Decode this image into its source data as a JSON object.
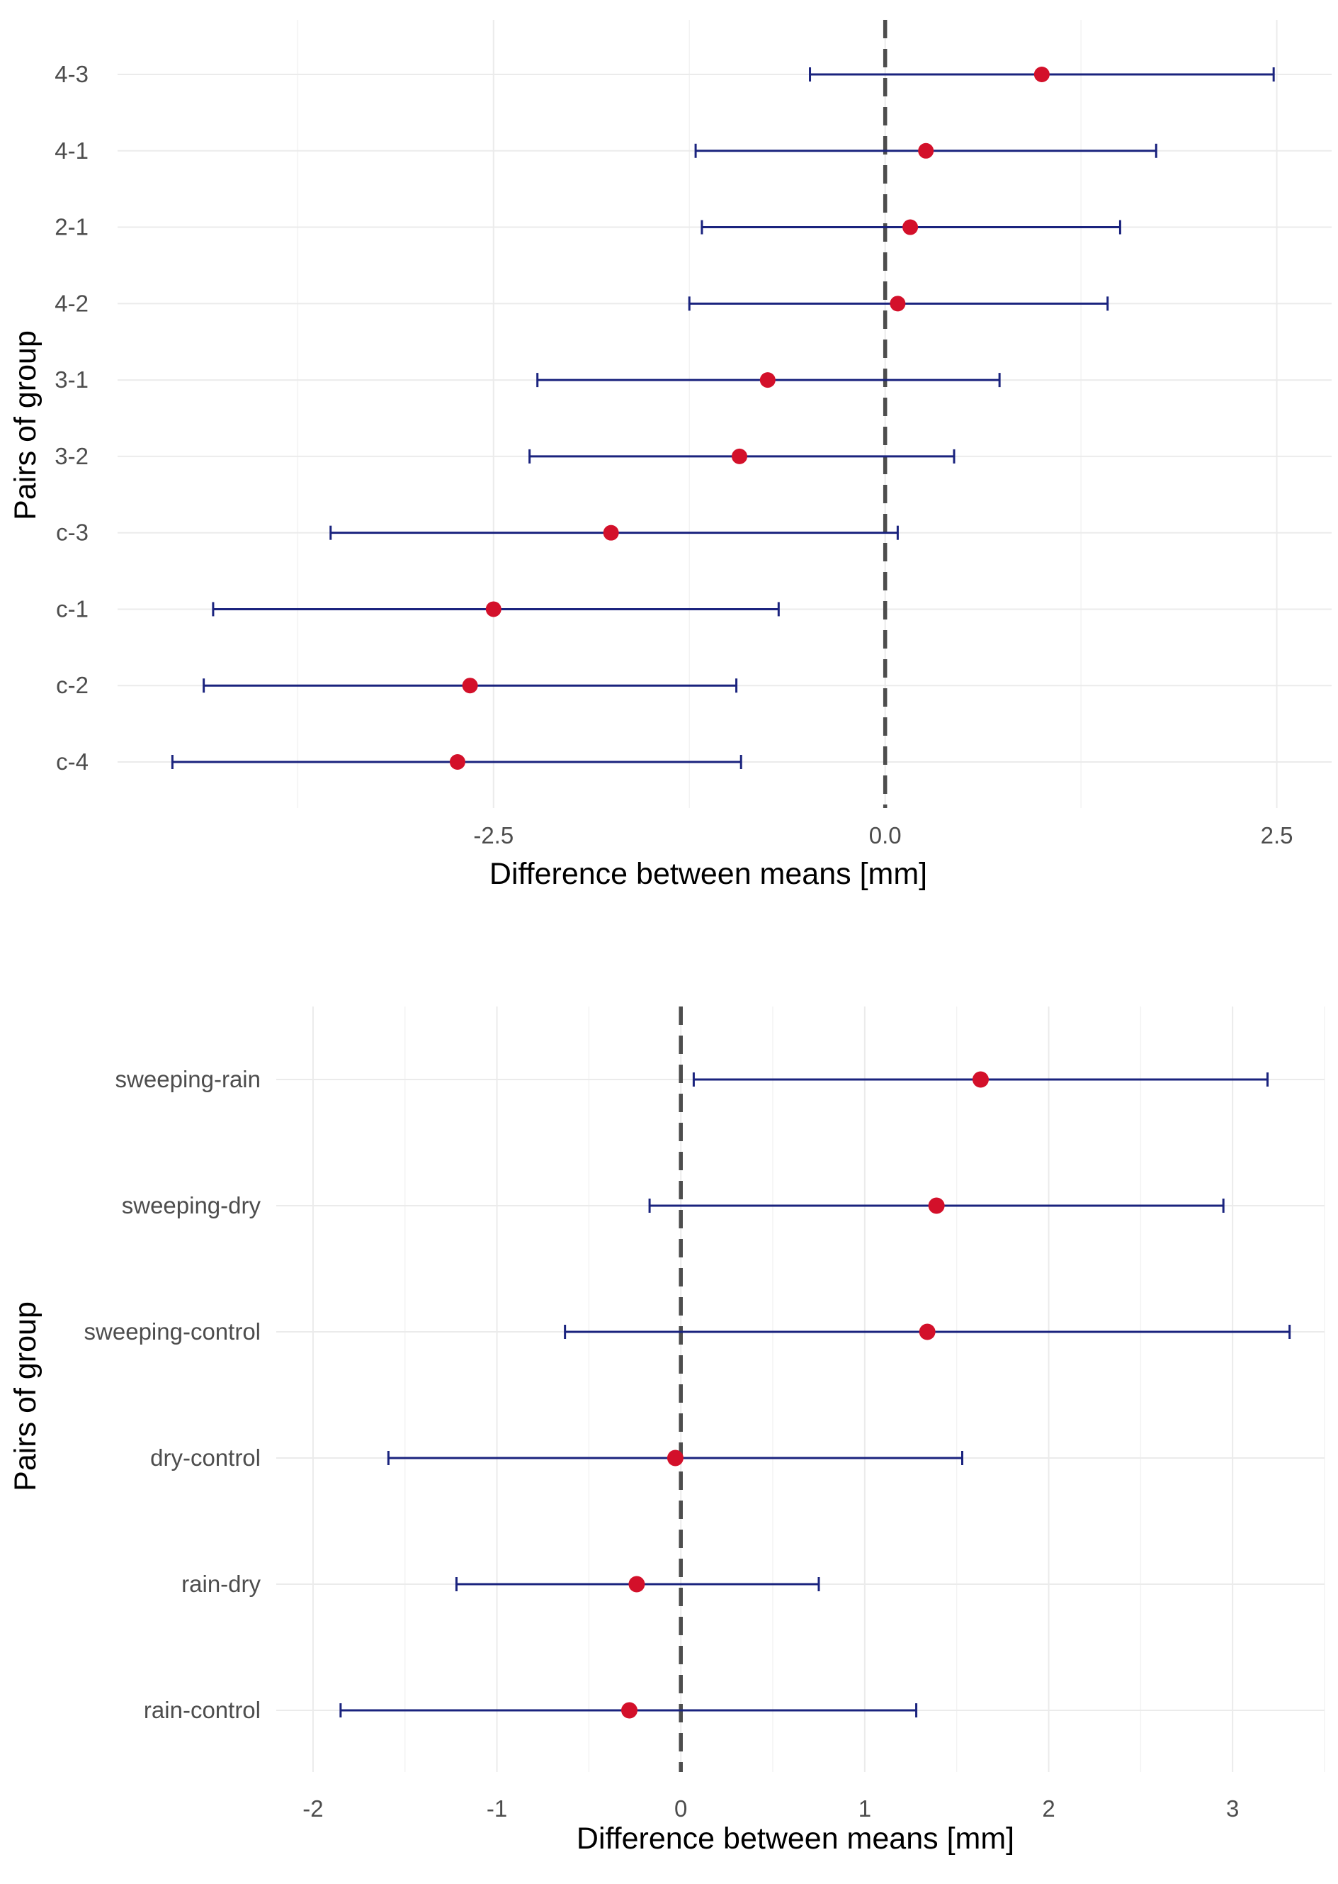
{
  "colors": {
    "errorbar": "#1a237e",
    "point": "#d3102a",
    "zero_line": "#4d4d4d",
    "grid": "#ebebeb",
    "tick_text": "#4d4d4d"
  },
  "chart_data": [
    {
      "type": "errorbar",
      "xlabel": "Difference between means [mm]",
      "ylabel": "Pairs of group",
      "xlim": [
        -4.9,
        2.85
      ],
      "xticks": [
        -2.5,
        0,
        2.5
      ],
      "xtick_labels": [
        "-2.5",
        "0.0",
        "2.5"
      ],
      "reference_line": 0,
      "series": [
        {
          "label": "4-3",
          "estimate": 1.0,
          "lower": -0.48,
          "upper": 2.48
        },
        {
          "label": "4-1",
          "estimate": 0.26,
          "lower": -1.21,
          "upper": 1.73
        },
        {
          "label": "2-1",
          "estimate": 0.16,
          "lower": -1.17,
          "upper": 1.5
        },
        {
          "label": "4-2",
          "estimate": 0.08,
          "lower": -1.25,
          "upper": 1.42
        },
        {
          "label": "3-1",
          "estimate": -0.75,
          "lower": -2.22,
          "upper": 0.73
        },
        {
          "label": "3-2",
          "estimate": -0.93,
          "lower": -2.27,
          "upper": 0.44
        },
        {
          "label": "c-3",
          "estimate": -1.75,
          "lower": -3.54,
          "upper": 0.08
        },
        {
          "label": "c-1",
          "estimate": -2.5,
          "lower": -4.29,
          "upper": -0.68
        },
        {
          "label": "c-2",
          "estimate": -2.65,
          "lower": -4.35,
          "upper": -0.95
        },
        {
          "label": "c-4",
          "estimate": -2.73,
          "lower": -4.55,
          "upper": -0.92
        }
      ]
    },
    {
      "type": "errorbar",
      "xlabel": "Difference between means [mm]",
      "ylabel": "Pairs of group",
      "xlim": [
        -2.2,
        3.5
      ],
      "xticks": [
        -2,
        -1,
        0,
        1,
        2,
        3
      ],
      "xtick_labels": [
        "-2",
        "-1",
        "0",
        "1",
        "2",
        "3"
      ],
      "reference_line": 0,
      "series": [
        {
          "label": "sweeping-rain",
          "estimate": 1.63,
          "lower": 0.07,
          "upper": 3.19
        },
        {
          "label": "sweeping-dry",
          "estimate": 1.39,
          "lower": -0.17,
          "upper": 2.95
        },
        {
          "label": "sweeping-control",
          "estimate": 1.34,
          "lower": -0.63,
          "upper": 3.31
        },
        {
          "label": "dry-control",
          "estimate": -0.03,
          "lower": -1.59,
          "upper": 1.53
        },
        {
          "label": "rain-dry",
          "estimate": -0.24,
          "lower": -1.22,
          "upper": 0.75
        },
        {
          "label": "rain-control",
          "estimate": -0.28,
          "lower": -1.85,
          "upper": 1.28
        }
      ]
    }
  ]
}
